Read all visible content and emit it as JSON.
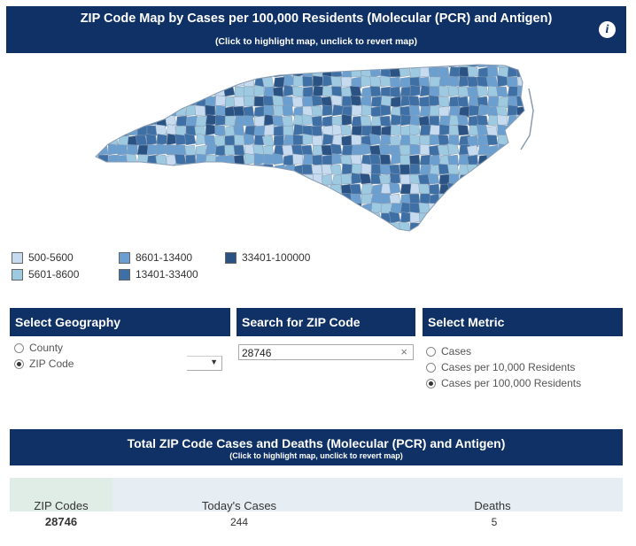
{
  "map_header": {
    "title": "ZIP Code Map by Cases per 100,000 Residents (Molecular (PCR) and Antigen)",
    "subtitle": "(Click to highlight map, unclick to revert map)",
    "info_icon": "i"
  },
  "legend": [
    {
      "label": "500-5600",
      "color": "#c6dbef"
    },
    {
      "label": "5601-8600",
      "color": "#9ecae1"
    },
    {
      "label": "8601-13400",
      "color": "#6b9fcf"
    },
    {
      "label": "13401-33400",
      "color": "#3e6fa5"
    },
    {
      "label": "33401-100000",
      "color": "#2a5282"
    }
  ],
  "select_geography": {
    "header": "Select Geography",
    "options": [
      {
        "label": "County",
        "selected": false
      },
      {
        "label": "ZIP Code",
        "selected": true
      }
    ]
  },
  "zip_search": {
    "header": "Search for ZIP Code",
    "value": "28746",
    "clear_icon": "×"
  },
  "select_metric": {
    "header": "Select Metric",
    "options": [
      {
        "label": "Cases",
        "selected": false
      },
      {
        "label": "Cases per 10,000 Residents",
        "selected": false
      },
      {
        "label": "Cases per 100,000 Residents",
        "selected": true
      }
    ]
  },
  "totals": {
    "title": "Total ZIP Code Cases and Deaths (Molecular (PCR) and Antigen)",
    "subtitle": "(Click to highlight map, unclick to revert map)",
    "columns": [
      "ZIP Codes",
      "Today's Cases",
      "Deaths"
    ],
    "row": {
      "zip": "28746",
      "cases": "244",
      "deaths": "5"
    }
  },
  "colors": {
    "header_navy": "#0f3166",
    "map_border": "#8a9db3"
  }
}
